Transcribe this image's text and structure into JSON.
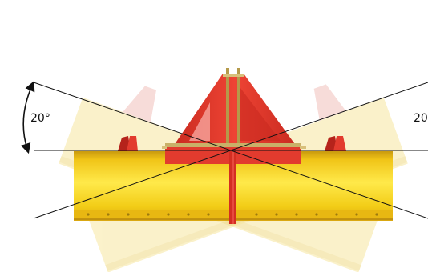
{
  "diagram": {
    "angle_label_left": "20°",
    "angle_label_right": "20",
    "angle_degrees": 20,
    "colors": {
      "blade_yellow": "#f2cc16",
      "blade_yellow_light": "#ffe94a",
      "blade_yellow_dark": "#c99a0e",
      "ghost_yellow": "#faf1c4",
      "ghost_pink": "#f3c9c6",
      "frame_red": "#e23b2e",
      "frame_red_dark": "#b5231b",
      "line_black": "#111111"
    },
    "icons": [
      "curved-double-arrow-icon"
    ]
  }
}
